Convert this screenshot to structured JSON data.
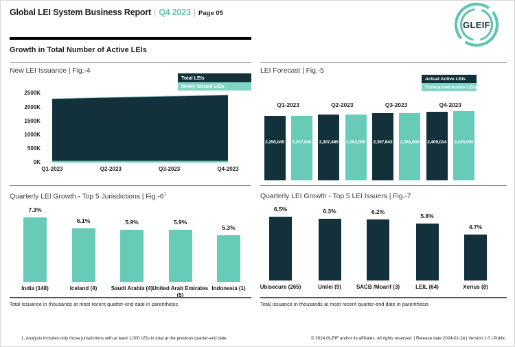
{
  "header": {
    "title": "Global LEI System Business Report",
    "separator": "|",
    "quarter": "Q4 2023",
    "page_label": "Page 05",
    "section_title": "Growth in Total Number of Active LEIs",
    "logo_text": "GLEIF"
  },
  "colors": {
    "dark": "#13313A",
    "teal": "#68CBB8",
    "legend_teal": "#82D4C4",
    "accent_text": "#5FC4B2",
    "area_edge": "#A9E0D4"
  },
  "footers": {
    "left_caption": "Total issuance in thousands at most recent quarter-end date in parenthesis",
    "right_caption": "Total issuance in thousands at most recent quarter-end date in parenthesis",
    "footnote": "1. Analysis includes only those jurisdictions with at least 1,000 LEIs in total at the previous quarter-end date.",
    "copyright": "© 2024 GLEIF and/or its affiliates. All rights reserved. | Release date 2024-01-24 | Version 1.0 | Public"
  },
  "chart_data": [
    {
      "id": "fig4",
      "type": "area",
      "title": "New LEI Issuance | Fig.-4",
      "x": [
        "Q1-2023",
        "Q2-2023",
        "Q3-2023",
        "Q4-2023"
      ],
      "yticks": [
        "2500K",
        "2000K",
        "1500K",
        "1000K",
        "500K",
        "0K"
      ],
      "ylim_thousands": [
        0,
        2500
      ],
      "unit": "thousands of LEIs",
      "legend_position": "top-right",
      "series": [
        {
          "name": "Total LEIs",
          "values_thousands": [
            2310,
            2355,
            2400,
            2440
          ]
        },
        {
          "name": "Newly Issued LEIs",
          "values_thousands": [
            60,
            60,
            60,
            60
          ]
        }
      ]
    },
    {
      "id": "fig5",
      "type": "bar",
      "title": "LEI Forecast | Fig.-5",
      "categories": [
        "Q1-2023",
        "Q2-2023",
        "Q3-2023",
        "Q4-2023"
      ],
      "legend_position": "top-right",
      "series": [
        {
          "name": "Actual Active LEIs",
          "values": [
            2250045,
            2307485,
            2357643,
            2409014
          ]
        },
        {
          "name": "Forecasted Active LEIs",
          "values": [
            2247000,
            2302000,
            2361000,
            2425000
          ]
        }
      ],
      "bar_labels": [
        "2,250,045",
        "2,247,000",
        "2,307,485",
        "2,302,000",
        "2,357,643",
        "2,361,000",
        "2,409,014",
        "2,425,000"
      ]
    },
    {
      "id": "fig6",
      "type": "bar",
      "title": "Quarterly LEI Growth - Top 5 Jurisdictions | Fig.-6",
      "footnote_ref": "1",
      "categories": [
        "India (148)",
        "Iceland (4)",
        "Saudi Arabia (4)",
        "United Arab Emirates (5)",
        "Indonesia (1)"
      ],
      "values": [
        7.3,
        6.1,
        5.9,
        5.9,
        5.3
      ],
      "unit": "%"
    },
    {
      "id": "fig7",
      "type": "bar",
      "title": "Quarterly LEI Growth - Top 5 LEI Issuers | Fig.-7",
      "categories": [
        "Ubisecure (265)",
        "Unilei (9)",
        "SACB /Moarif (3)",
        "LEIL (64)",
        "Xerius (8)"
      ],
      "values": [
        6.5,
        6.3,
        6.2,
        5.8,
        4.7
      ],
      "unit": "%"
    }
  ]
}
